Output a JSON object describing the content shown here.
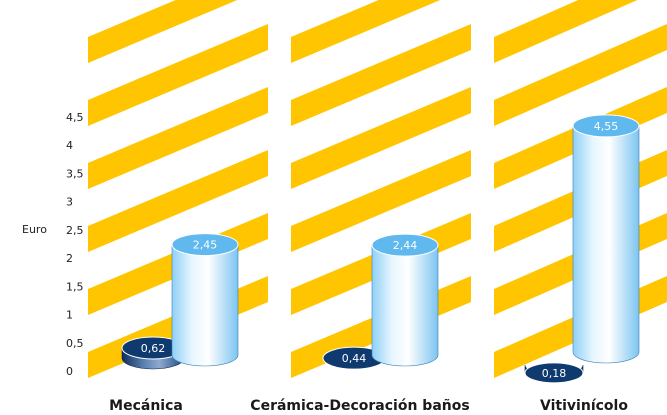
{
  "chart_data": {
    "type": "bar",
    "categories": [
      "Mecánica",
      "Cerámica-Decoración baños",
      "Vitivinícolo"
    ],
    "series": [
      {
        "values": [
          0.62,
          0.44,
          0.18
        ]
      },
      {
        "values": [
          2.45,
          2.44,
          4.55
        ]
      }
    ],
    "value_labels": [
      [
        "0,62",
        "0,44",
        "0,18"
      ],
      [
        "2,45",
        "2,44",
        "4,55"
      ]
    ],
    "ylabel": "Euro",
    "yticks": [
      0,
      0.5,
      1,
      1.5,
      2,
      2.5,
      3,
      3.5,
      4,
      4.5
    ],
    "ytick_labels": [
      "0",
      "0,5",
      "1",
      "1,5",
      "2",
      "2,5",
      "3",
      "3,5",
      "4",
      "4,5"
    ],
    "ylim": [
      0,
      4.5
    ],
    "grid": false,
    "colors": {
      "stripes": "#FFC500",
      "series_0_front": "#1f4f8f",
      "series_0_top": "#0f3a70",
      "series_1_front": "#bfe6ff",
      "series_1_top": "#5fb8ee"
    }
  }
}
